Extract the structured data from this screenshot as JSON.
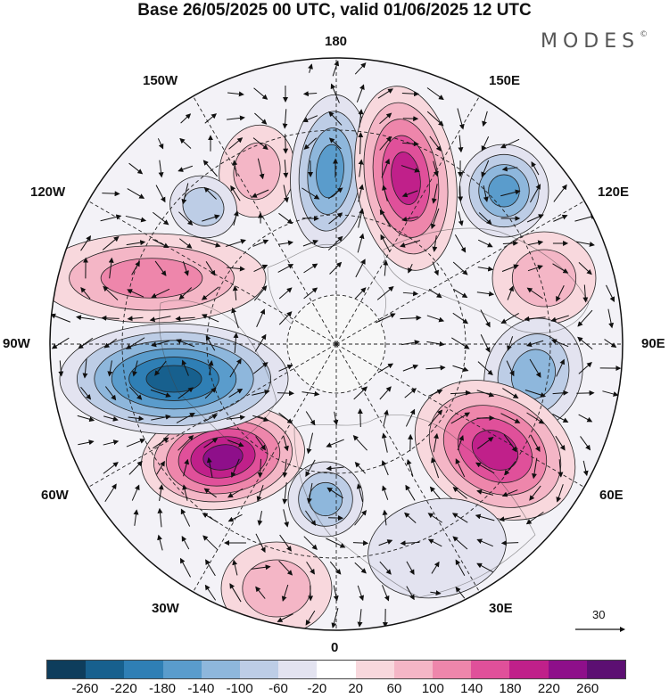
{
  "title": "Base 26/05/2025 00 UTC, valid 01/06/2025 12 UTC",
  "brand": "MODES",
  "brand_mark": "©",
  "longitude_labels": {
    "top": "180",
    "bottom": "0",
    "left": "90W",
    "right": "90E",
    "upper_left_1": "150W",
    "upper_left_2": "120W",
    "upper_right_1": "150E",
    "upper_right_2": "120E",
    "lower_left_1": "60W",
    "lower_left_2": "30W",
    "lower_right_1": "60E",
    "lower_right_2": "30E"
  },
  "vector_scale": {
    "value": "30",
    "icon": "arrow-right-icon"
  },
  "colorbar": {
    "colors": [
      "#0e3d5c",
      "#17608e",
      "#2f7fb5",
      "#5a9ccc",
      "#8eb7dc",
      "#bdcde6",
      "#e3e3f0",
      "#ffffff",
      "#f8d8dd",
      "#f4b6c6",
      "#ee86ab",
      "#e0509a",
      "#c0208a",
      "#8e0f8a",
      "#5c0f72"
    ],
    "labels": [
      "-260",
      "-220",
      "-180",
      "-140",
      "-100",
      "-60",
      "-20",
      "20",
      "60",
      "100",
      "140",
      "180",
      "220",
      "260"
    ]
  },
  "anomaly_centers": [
    {
      "lon_label": "150W",
      "sign": "positive",
      "level": 2
    },
    {
      "lon_label": "180",
      "sign": "negative",
      "level": 4
    },
    {
      "lon_label": "150E",
      "sign": "positive",
      "level": 5
    },
    {
      "lon_label": "120E",
      "sign": "negative",
      "level": 4
    },
    {
      "lon_label": "120E",
      "sign": "positive",
      "level": 2
    },
    {
      "lon_label": "90E",
      "sign": "negative",
      "level": 3
    },
    {
      "lon_label": "60E",
      "sign": "positive",
      "level": 5
    },
    {
      "lon_label": "30E",
      "sign": "negative",
      "level": 1
    },
    {
      "lon_label": "0",
      "sign": "negative",
      "level": 3
    },
    {
      "lon_label": "30W",
      "sign": "positive",
      "level": 2
    },
    {
      "lon_label": "60W",
      "sign": "positive",
      "level": 6
    },
    {
      "lon_label": "90W",
      "sign": "negative",
      "level": 6
    },
    {
      "lon_label": "120W",
      "sign": "positive",
      "level": 3
    },
    {
      "lon_label": "120W",
      "sign": "negative",
      "level": 2
    }
  ]
}
